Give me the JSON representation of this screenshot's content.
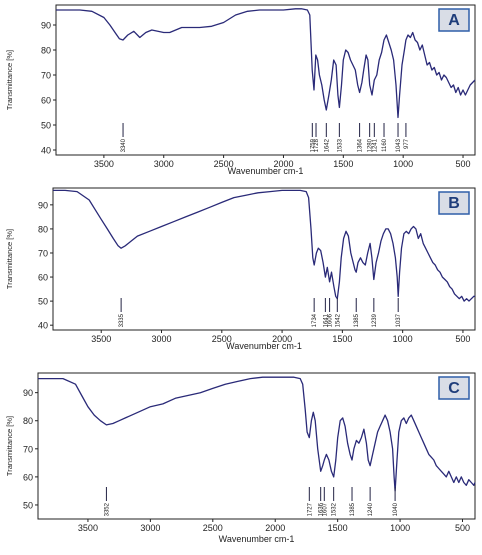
{
  "figure": {
    "colors": {
      "line": "#2a2a78",
      "axis": "#222222",
      "marker": "#222244",
      "badge_fill": "#d9dde6",
      "badge_border": "#2f5fa8",
      "badge_text": "#1f3d7a"
    }
  },
  "chart_data": [
    {
      "type": "line",
      "panel_label": "A",
      "xlabel": "Wavenumber cm-1",
      "ylabel": "Transmittance [%]",
      "xlim": [
        3900,
        400
      ],
      "ylim": [
        38,
        98
      ],
      "x_ticks": [
        3500,
        3000,
        2500,
        2000,
        1500,
        1000,
        500
      ],
      "x_tick_labels": [
        "3500",
        "3000",
        "2500",
        "2000",
        "1500",
        "1000",
        "500"
      ],
      "y_ticks": [
        40,
        50,
        60,
        70,
        80,
        90
      ],
      "y_tick_labels": [
        "40",
        "50",
        "60",
        "70",
        "80",
        "90"
      ],
      "peak_labels": [
        "3340",
        "1759",
        "1728",
        "1642",
        "1533",
        "1364",
        "1280",
        "1241",
        "1160",
        "1043",
        "977"
      ],
      "peak_positions": [
        3340,
        1759,
        1728,
        1642,
        1533,
        1364,
        1280,
        1241,
        1160,
        1043,
        977
      ],
      "series": [
        {
          "x": [
            3900,
            3800,
            3700,
            3600,
            3500,
            3450,
            3400,
            3370,
            3340,
            3300,
            3250,
            3200,
            3150,
            3100,
            3050,
            3000,
            2950,
            2900,
            2850,
            2800,
            2700,
            2600,
            2500,
            2400,
            2300,
            2200,
            2100,
            2000,
            1900,
            1850,
            1800,
            1780,
            1760,
            1745,
            1730,
            1715,
            1700,
            1680,
            1660,
            1642,
            1620,
            1600,
            1580,
            1560,
            1545,
            1533,
            1515,
            1500,
            1480,
            1460,
            1440,
            1420,
            1400,
            1380,
            1364,
            1345,
            1330,
            1310,
            1295,
            1280,
            1260,
            1241,
            1220,
            1200,
            1180,
            1160,
            1140,
            1120,
            1100,
            1080,
            1060,
            1043,
            1030,
            1010,
            990,
            977,
            960,
            940,
            920,
            900,
            880,
            860,
            840,
            820,
            800,
            780,
            760,
            740,
            720,
            700,
            680,
            660,
            640,
            620,
            600,
            580,
            560,
            540,
            520,
            500,
            480,
            460,
            440,
            420,
            400
          ],
          "y": [
            96,
            96,
            96,
            95.5,
            93,
            90,
            86.5,
            84.5,
            84,
            86,
            87.5,
            85,
            87,
            88,
            87.5,
            87,
            87,
            88,
            89,
            89,
            89,
            89.5,
            91,
            94,
            95.5,
            96,
            96,
            96,
            96.5,
            96.5,
            96,
            94,
            72,
            64,
            78,
            76,
            70,
            66,
            60,
            56,
            62,
            68,
            76,
            74,
            62,
            57,
            66,
            76,
            80,
            79,
            76,
            74,
            72,
            66,
            63,
            67,
            72,
            78,
            76,
            66,
            62,
            68,
            70,
            76,
            79,
            84,
            86,
            83,
            80,
            76,
            66,
            53,
            62,
            74,
            80,
            84,
            86,
            85,
            87,
            84,
            83,
            80,
            82,
            78,
            74,
            75,
            72,
            73,
            70,
            71,
            68,
            70,
            69,
            67,
            65,
            66,
            63,
            65,
            62,
            64,
            62,
            64,
            66,
            67,
            68
          ]
        }
      ]
    },
    {
      "type": "line",
      "panel_label": "B",
      "xlabel": "Wavenumber cm-1",
      "ylabel": "Transmittance [%]",
      "xlim": [
        3900,
        400
      ],
      "ylim": [
        38,
        97
      ],
      "x_ticks": [
        3500,
        3000,
        2500,
        2000,
        1500,
        1000,
        500
      ],
      "x_tick_labels": [
        "3500",
        "3000",
        "2500",
        "2000",
        "1500",
        "1000",
        "500"
      ],
      "y_ticks": [
        40,
        50,
        60,
        70,
        80,
        90
      ],
      "y_tick_labels": [
        "40",
        "50",
        "60",
        "70",
        "80",
        "90"
      ],
      "peak_labels": [
        "3335",
        "1734",
        "1641",
        "1606",
        "1542",
        "1385",
        "1239",
        "1037"
      ],
      "peak_positions": [
        3335,
        1734,
        1641,
        1606,
        1542,
        1385,
        1239,
        1037
      ],
      "series": [
        {
          "x": [
            3900,
            3800,
            3700,
            3600,
            3550,
            3500,
            3450,
            3400,
            3360,
            3335,
            3300,
            3250,
            3200,
            3100,
            3000,
            2900,
            2800,
            2700,
            2600,
            2500,
            2400,
            2300,
            2200,
            2100,
            2000,
            1900,
            1850,
            1800,
            1780,
            1760,
            1745,
            1734,
            1715,
            1700,
            1680,
            1660,
            1641,
            1625,
            1606,
            1590,
            1570,
            1555,
            1542,
            1525,
            1510,
            1490,
            1470,
            1450,
            1430,
            1410,
            1395,
            1385,
            1370,
            1350,
            1330,
            1310,
            1290,
            1270,
            1255,
            1239,
            1220,
            1200,
            1180,
            1160,
            1140,
            1120,
            1100,
            1080,
            1060,
            1045,
            1037,
            1025,
            1010,
            990,
            970,
            950,
            930,
            910,
            890,
            870,
            850,
            830,
            810,
            790,
            770,
            750,
            730,
            710,
            690,
            670,
            650,
            630,
            610,
            590,
            570,
            550,
            530,
            510,
            490,
            470,
            450,
            430,
            410,
            400
          ],
          "y": [
            96,
            96,
            95.5,
            92,
            88,
            84,
            80,
            76,
            73,
            72,
            73,
            75,
            77,
            79,
            81,
            83,
            85,
            87,
            89,
            91,
            93,
            94,
            95,
            95.5,
            96,
            96,
            96,
            95.5,
            93,
            80,
            68,
            65,
            70,
            72,
            71,
            66,
            60,
            64,
            58,
            62,
            56,
            52,
            51,
            58,
            68,
            76,
            79,
            77,
            70,
            66,
            63,
            62,
            66,
            68,
            66,
            65,
            70,
            74,
            68,
            59,
            66,
            70,
            75,
            78,
            80,
            80,
            78,
            74,
            68,
            60,
            52,
            62,
            72,
            78,
            79,
            78,
            80,
            81,
            80,
            76,
            78,
            74,
            72,
            70,
            68,
            66,
            65,
            63,
            62,
            60,
            59,
            58,
            56,
            55,
            53,
            52,
            51,
            52,
            50,
            51,
            50,
            51,
            52,
            52
          ]
        }
      ]
    },
    {
      "type": "line",
      "panel_label": "C",
      "xlabel": "Wavenumber cm-1",
      "ylabel": "Transmittance [%]",
      "xlim": [
        3900,
        400
      ],
      "ylim": [
        45,
        97
      ],
      "x_ticks": [
        3500,
        3000,
        2500,
        2000,
        1500,
        1000,
        500
      ],
      "x_tick_labels": [
        "3500",
        "3000",
        "2500",
        "2000",
        "1500",
        "1000",
        "500"
      ],
      "y_ticks": [
        50,
        60,
        70,
        80,
        90
      ],
      "y_tick_labels": [
        "50",
        "60",
        "70",
        "80",
        "90"
      ],
      "peak_labels": [
        "3352",
        "1727",
        "1636",
        "1607",
        "1532",
        "1385",
        "1240",
        "1040"
      ],
      "peak_positions": [
        3352,
        1727,
        1636,
        1607,
        1532,
        1385,
        1240,
        1040
      ],
      "series": [
        {
          "x": [
            3900,
            3800,
            3700,
            3600,
            3550,
            3500,
            3450,
            3400,
            3352,
            3300,
            3250,
            3200,
            3100,
            3000,
            2900,
            2800,
            2700,
            2600,
            2500,
            2400,
            2300,
            2200,
            2100,
            2000,
            1900,
            1850,
            1800,
            1780,
            1760,
            1745,
            1727,
            1710,
            1695,
            1680,
            1660,
            1636,
            1620,
            1607,
            1590,
            1570,
            1550,
            1532,
            1515,
            1500,
            1480,
            1460,
            1440,
            1420,
            1400,
            1385,
            1370,
            1350,
            1330,
            1310,
            1290,
            1270,
            1255,
            1240,
            1220,
            1200,
            1180,
            1160,
            1140,
            1120,
            1100,
            1080,
            1060,
            1048,
            1040,
            1025,
            1010,
            990,
            970,
            950,
            930,
            910,
            890,
            870,
            850,
            830,
            810,
            790,
            770,
            750,
            730,
            710,
            690,
            670,
            650,
            630,
            610,
            590,
            570,
            550,
            530,
            510,
            490,
            470,
            450,
            430,
            410,
            400
          ],
          "y": [
            95,
            95,
            95,
            93,
            89,
            85,
            82,
            80,
            78.5,
            79,
            80,
            81,
            83,
            85,
            86,
            88,
            89,
            90,
            91.5,
            93,
            94,
            95,
            95.5,
            95.5,
            95.5,
            95.5,
            95,
            93,
            84,
            76,
            74,
            80,
            83,
            80,
            70,
            62,
            64,
            66,
            68,
            66,
            62,
            60,
            66,
            74,
            80,
            81,
            78,
            72,
            68,
            66,
            70,
            73,
            72,
            74,
            77,
            72,
            66,
            64,
            68,
            72,
            76,
            78,
            80,
            82,
            80,
            76,
            70,
            60,
            55,
            66,
            76,
            80,
            81,
            79,
            81,
            82,
            80,
            78,
            76,
            74,
            72,
            70,
            68,
            67,
            66,
            64,
            63,
            62,
            61,
            60,
            62,
            60,
            58,
            60,
            58,
            60,
            58,
            57,
            59,
            58,
            57,
            58
          ]
        }
      ]
    }
  ]
}
